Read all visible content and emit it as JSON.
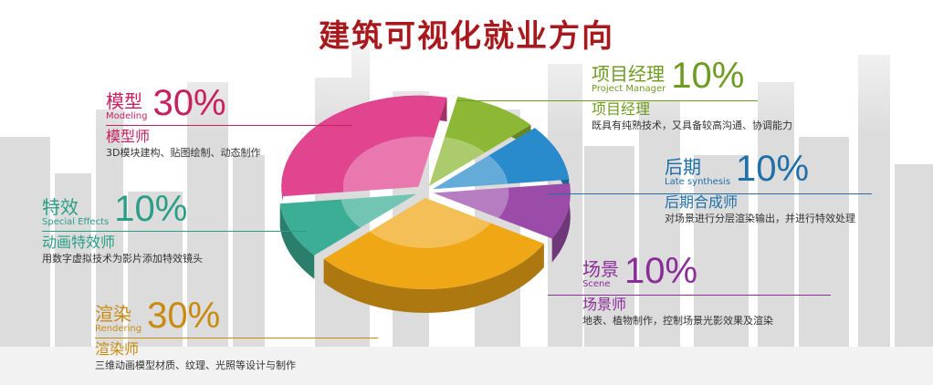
{
  "title": "建筑可视化就业方向",
  "chart_data": {
    "type": "pie",
    "title": "建筑可视化就业方向",
    "slices": [
      {
        "key": "modeling",
        "label": "模型",
        "label_en": "Modeling",
        "value": 30,
        "display": "30%",
        "color": "#e1458f",
        "role": "模型师",
        "desc": "3D模块建构、贴图绘制、动态制作"
      },
      {
        "key": "pm",
        "label": "项目经理",
        "label_en": "Project Manager",
        "value": 10,
        "display": "10%",
        "color": "#8db835",
        "role": "项目经理",
        "desc": "既具有纯熟技术，又具备较高沟通、协调能力"
      },
      {
        "key": "late",
        "label": "后期",
        "label_en": "Late synthesis",
        "value": 10,
        "display": "10%",
        "color": "#2a8bcc",
        "role": "后期合成师",
        "desc": "对场景进行分层渲染输出，并进行特效处理"
      },
      {
        "key": "scene",
        "label": "场景",
        "label_en": "Scene",
        "value": 10,
        "display": "10%",
        "color": "#9a4ca8",
        "role": "场景师",
        "desc": "地表、植物制作，控制场景光影效果及渲染"
      },
      {
        "key": "rendering",
        "label": "渲染",
        "label_en": "Rendering",
        "value": 30,
        "display": "30%",
        "color": "#f0a716",
        "role": "渲染师",
        "desc": "三维动画模型材质、纹理、光照等设计与制作"
      },
      {
        "key": "effects",
        "label": "特效",
        "label_en": "Special Effects",
        "value": 10,
        "display": "10%",
        "color": "#3cae96",
        "role": "动画特效师",
        "desc": "用数字虚拟技术为影片添加特效镜头"
      }
    ]
  }
}
